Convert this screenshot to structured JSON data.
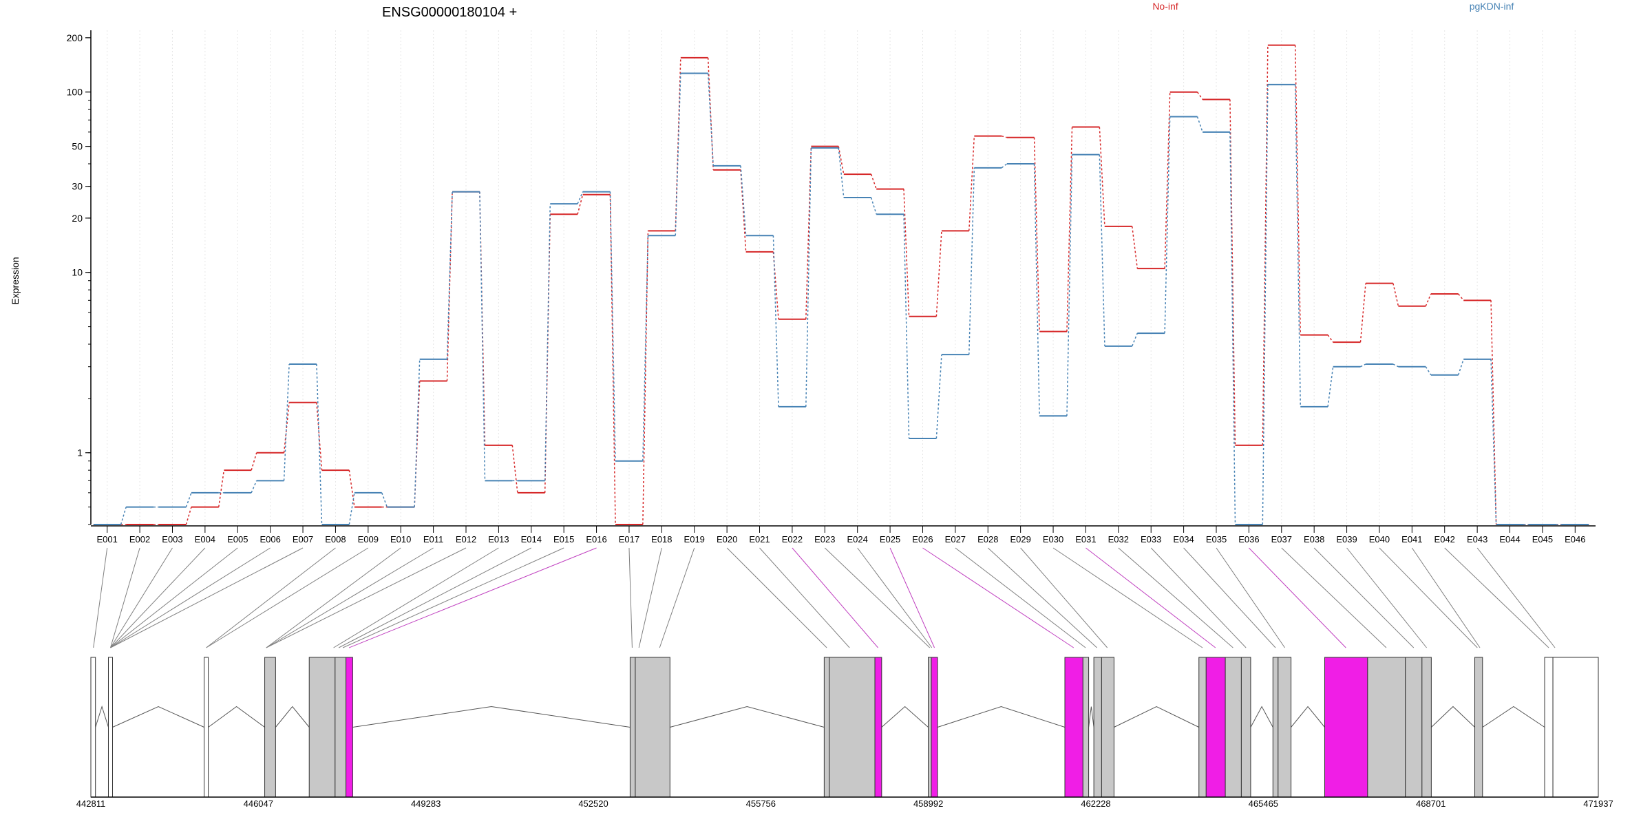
{
  "chart_data": {
    "type": "line",
    "title": "ENSG00000180104 +",
    "ylabel": "Expression",
    "yscale": "log",
    "ylim": [
      0.4,
      220
    ],
    "yticks": [
      {
        "value": 1,
        "label": "1"
      },
      {
        "value": 10,
        "label": "10"
      },
      {
        "value": 20,
        "label": "20"
      },
      {
        "value": 30,
        "label": "30"
      },
      {
        "value": 50,
        "label": "50"
      },
      {
        "value": 100,
        "label": "100"
      },
      {
        "value": 200,
        "label": "200"
      }
    ],
    "categories": [
      "E001",
      "E002",
      "E003",
      "E004",
      "E005",
      "E006",
      "E007",
      "E008",
      "E009",
      "E010",
      "E011",
      "E012",
      "E013",
      "E014",
      "E015",
      "E016",
      "E017",
      "E018",
      "E019",
      "E020",
      "E021",
      "E022",
      "E023",
      "E024",
      "E025",
      "E026",
      "E027",
      "E028",
      "E029",
      "E030",
      "E031",
      "E032",
      "E033",
      "E034",
      "E035",
      "E036",
      "E037",
      "E038",
      "E039",
      "E040",
      "E041",
      "E042",
      "E043",
      "E044",
      "E045",
      "E046"
    ],
    "grid": "vertical",
    "legend_placement": "top",
    "series": [
      {
        "name": "No-inf",
        "color": "#d62728",
        "values": [
          0.4,
          0.4,
          0.4,
          0.5,
          0.8,
          1.0,
          1.9,
          0.8,
          0.5,
          0.5,
          2.5,
          28,
          1.1,
          0.6,
          21,
          27,
          0.4,
          17,
          155,
          37,
          13,
          5.5,
          50,
          35,
          29,
          5.7,
          17,
          57,
          56,
          4.7,
          64,
          18,
          10.5,
          100,
          91,
          1.1,
          182,
          4.5,
          4.1,
          8.7,
          6.5,
          7.6,
          7.0,
          0.4,
          0.4,
          0.4
        ]
      },
      {
        "name": "pgKDN-inf",
        "color": "#4682b4",
        "values": [
          0.4,
          0.5,
          0.5,
          0.6,
          0.6,
          0.7,
          3.1,
          0.4,
          0.6,
          0.5,
          3.3,
          28,
          0.7,
          0.7,
          24,
          28,
          0.9,
          16,
          127,
          39,
          16,
          1.8,
          49,
          26,
          21,
          1.2,
          3.5,
          38,
          40,
          1.6,
          45,
          3.9,
          4.6,
          73,
          60,
          0.4,
          110,
          1.8,
          3.0,
          3.1,
          3.0,
          2.7,
          3.3,
          0.4,
          0.4,
          0.4
        ]
      }
    ],
    "gene_model": {
      "coordinate_ticks": [
        "442811",
        "446047",
        "449283",
        "452520",
        "455756",
        "458992",
        "462228",
        "465465",
        "468701",
        "471937"
      ],
      "exons": [
        {
          "start": 442811,
          "end": 442900,
          "fill": "#ffffff"
        },
        {
          "start": 443150,
          "end": 443230,
          "fill": "#ffffff"
        },
        {
          "start": 445000,
          "end": 445080,
          "fill": "#ffffff"
        },
        {
          "start": 446170,
          "end": 446380,
          "fill": "#c8c8c8"
        },
        {
          "start": 447030,
          "end": 447530,
          "fill": "#c8c8c8"
        },
        {
          "start": 447530,
          "end": 447740,
          "fill": "#c8c8c8"
        },
        {
          "start": 447740,
          "end": 447870,
          "fill": "#f01ee6"
        },
        {
          "start": 453230,
          "end": 453330,
          "fill": "#c8c8c8"
        },
        {
          "start": 453330,
          "end": 454000,
          "fill": "#c8c8c8"
        },
        {
          "start": 456980,
          "end": 457080,
          "fill": "#c8c8c8"
        },
        {
          "start": 457080,
          "end": 457960,
          "fill": "#c8c8c8"
        },
        {
          "start": 457960,
          "end": 458090,
          "fill": "#f01ee6"
        },
        {
          "start": 458990,
          "end": 459050,
          "fill": "#c8c8c8"
        },
        {
          "start": 459050,
          "end": 459170,
          "fill": "#f01ee6"
        },
        {
          "start": 461630,
          "end": 461980,
          "fill": "#f01ee6"
        },
        {
          "start": 461980,
          "end": 462090,
          "fill": "#c8c8c8"
        },
        {
          "start": 462190,
          "end": 462340,
          "fill": "#c8c8c8"
        },
        {
          "start": 462340,
          "end": 462580,
          "fill": "#c8c8c8"
        },
        {
          "start": 464220,
          "end": 464360,
          "fill": "#c8c8c8"
        },
        {
          "start": 464360,
          "end": 464730,
          "fill": "#f01ee6"
        },
        {
          "start": 464730,
          "end": 465040,
          "fill": "#c8c8c8"
        },
        {
          "start": 465040,
          "end": 465220,
          "fill": "#c8c8c8"
        },
        {
          "start": 465650,
          "end": 465750,
          "fill": "#c8c8c8"
        },
        {
          "start": 465750,
          "end": 466000,
          "fill": "#c8c8c8"
        },
        {
          "start": 466650,
          "end": 467480,
          "fill": "#f01ee6"
        },
        {
          "start": 467480,
          "end": 468210,
          "fill": "#c8c8c8"
        },
        {
          "start": 468210,
          "end": 468530,
          "fill": "#c8c8c8"
        },
        {
          "start": 468530,
          "end": 468710,
          "fill": "#c8c8c8"
        },
        {
          "start": 469550,
          "end": 469700,
          "fill": "#c8c8c8"
        },
        {
          "start": 470900,
          "end": 471060,
          "fill": "#ffffff"
        },
        {
          "start": 471060,
          "end": 471937,
          "fill": "#ffffff"
        }
      ],
      "introns": [
        [
          442900,
          443150
        ],
        [
          443230,
          445000
        ],
        [
          445080,
          446170
        ],
        [
          446380,
          447030
        ],
        [
          447870,
          453230
        ],
        [
          454000,
          456980
        ],
        [
          458090,
          458990
        ],
        [
          459170,
          461630
        ],
        [
          462090,
          462190
        ],
        [
          462580,
          464220
        ],
        [
          465220,
          465650
        ],
        [
          466000,
          466650
        ],
        [
          468710,
          469550
        ],
        [
          469700,
          470900
        ]
      ],
      "exon_links": [
        {
          "target": 442860,
          "color": "#808080"
        },
        {
          "target": 443190,
          "color": "#808080"
        },
        {
          "target": 443190,
          "color": "#808080"
        },
        {
          "target": 443190,
          "color": "#808080"
        },
        {
          "target": 443190,
          "color": "#808080"
        },
        {
          "target": 443190,
          "color": "#808080"
        },
        {
          "target": 443190,
          "color": "#808080"
        },
        {
          "target": 445040,
          "color": "#808080"
        },
        {
          "target": 445040,
          "color": "#808080"
        },
        {
          "target": 446200,
          "color": "#808080"
        },
        {
          "target": 446200,
          "color": "#808080"
        },
        {
          "target": 446200,
          "color": "#808080"
        },
        {
          "target": 447500,
          "color": "#808080"
        },
        {
          "target": 447600,
          "color": "#808080"
        },
        {
          "target": 447680,
          "color": "#808080"
        },
        {
          "target": 447800,
          "color": "#c040c0"
        },
        {
          "target": 453270,
          "color": "#808080"
        },
        {
          "target": 453400,
          "color": "#808080"
        },
        {
          "target": 453800,
          "color": "#808080"
        },
        {
          "target": 457030,
          "color": "#808080"
        },
        {
          "target": 457470,
          "color": "#808080"
        },
        {
          "target": 458020,
          "color": "#c040c0"
        },
        {
          "target": 459020,
          "color": "#808080"
        },
        {
          "target": 459060,
          "color": "#808080"
        },
        {
          "target": 459110,
          "color": "#c040c0"
        },
        {
          "target": 461800,
          "color": "#c040c0"
        },
        {
          "target": 462030,
          "color": "#808080"
        },
        {
          "target": 462250,
          "color": "#808080"
        },
        {
          "target": 462450,
          "color": "#808080"
        },
        {
          "target": 464290,
          "color": "#808080"
        },
        {
          "target": 464540,
          "color": "#c040c0"
        },
        {
          "target": 464880,
          "color": "#808080"
        },
        {
          "target": 465130,
          "color": "#808080"
        },
        {
          "target": 465700,
          "color": "#808080"
        },
        {
          "target": 465880,
          "color": "#808080"
        },
        {
          "target": 467060,
          "color": "#c040c0"
        },
        {
          "target": 467840,
          "color": "#808080"
        },
        {
          "target": 468370,
          "color": "#808080"
        },
        {
          "target": 468620,
          "color": "#808080"
        },
        {
          "target": 469600,
          "color": "#808080"
        },
        {
          "target": 469650,
          "color": "#808080"
        },
        {
          "target": 470980,
          "color": "#808080"
        },
        {
          "target": 471100,
          "color": "#808080"
        }
      ]
    }
  }
}
